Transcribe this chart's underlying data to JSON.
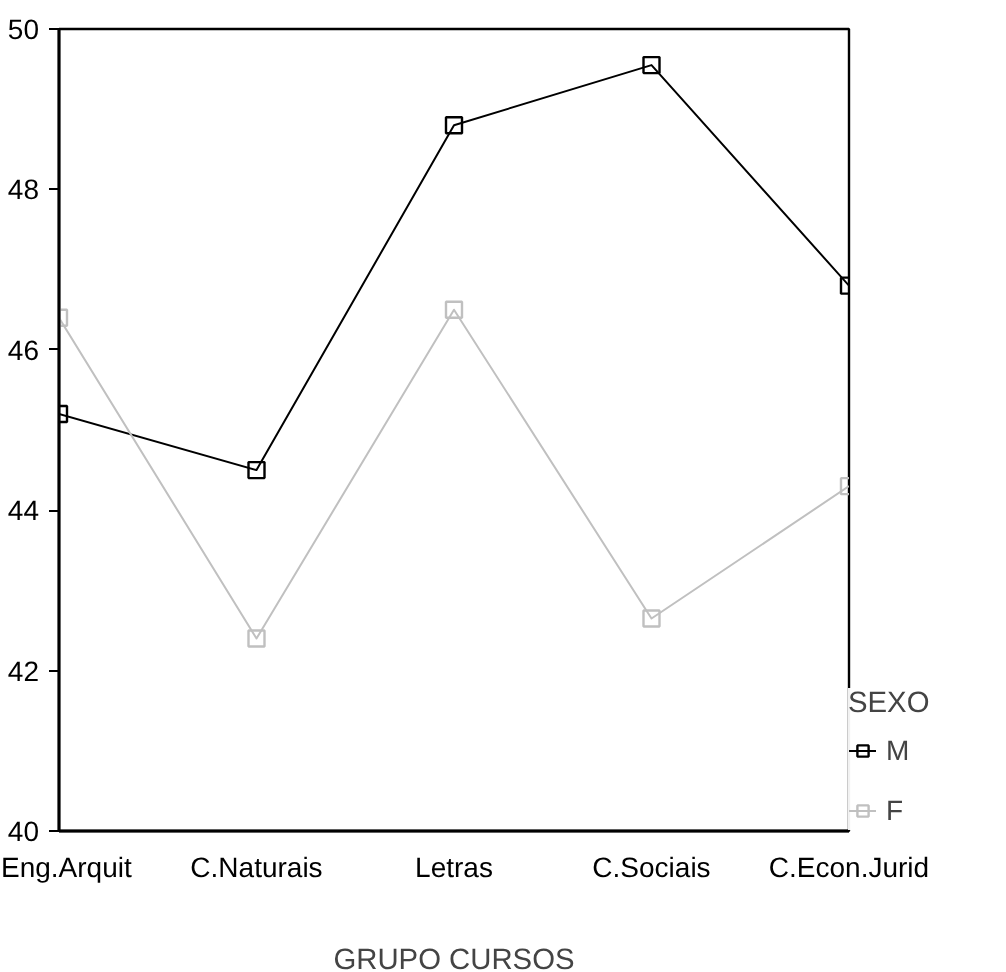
{
  "chart_data": {
    "type": "line",
    "xlabel": "GRUPO CURSOS",
    "legend_title": "SEXO",
    "legend": "right",
    "marker": "square",
    "grid": false,
    "categories": [
      "Eng.Arquit",
      "C.Naturais",
      "Letras",
      "C.Sociais",
      "C.Econ.Jurid"
    ],
    "ylim": [
      40,
      50
    ],
    "yticks": [
      40,
      42,
      44,
      46,
      48,
      50
    ],
    "series": [
      {
        "name": "M",
        "color": "#000000",
        "values": [
          45.2,
          44.5,
          48.8,
          49.55,
          46.8
        ]
      },
      {
        "name": "F",
        "color": "#c0c0c0",
        "values": [
          46.4,
          42.4,
          46.5,
          42.65,
          44.3
        ]
      }
    ]
  }
}
